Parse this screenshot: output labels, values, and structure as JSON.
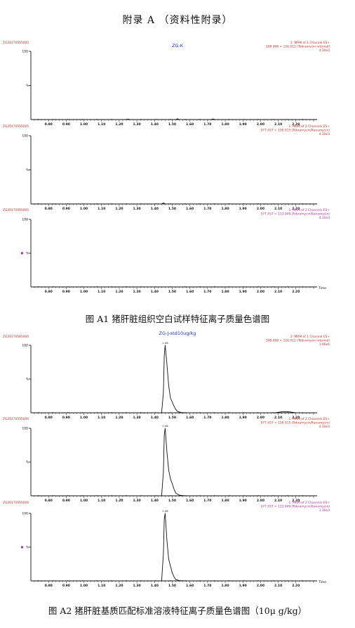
{
  "page": {
    "title": "附录 A （资料性附录）",
    "figure1_caption": "图 A1   猪肝脏组织空白试样特征离子质量色谱图",
    "figure2_caption": "图 A2   猪肝脏基质匹配标准溶液特征离子质量色谱图（10μ g/kg）"
  },
  "colors": {
    "red": "#c0302a",
    "blue": "#1c2fd6",
    "magenta": "#b0309e",
    "trace": "#111111"
  },
  "chart_data": [
    {
      "type": "line",
      "sample_title": "ZG-K",
      "x_axis_label": "Time",
      "x_ticks": [
        "0.80",
        "0.90",
        "1.00",
        "1.10",
        "1.20",
        "1.30",
        "1.40",
        "1.50",
        "1.60",
        "1.70",
        "1.80",
        "1.90",
        "2.00",
        "2.10",
        "2.20"
      ],
      "xlim": [
        0.7,
        2.32
      ],
      "panels": [
        {
          "file_id": "ZG20170505005",
          "y_top": "100",
          "y_mid": "%",
          "color": "#c0302a",
          "scan_line": "2: MRM of 1 Channel ES+",
          "transition": "598.496 > 116.012 (Tobramycin internal)",
          "intensity": "4.30e3",
          "x": [
            0.7,
            1.2,
            1.24,
            1.25,
            1.26,
            1.3,
            1.5,
            1.52,
            1.53,
            1.54,
            1.57,
            1.7,
            1.72,
            1.73,
            1.74,
            1.77,
            2.32
          ],
          "y": [
            0,
            0,
            0,
            0.8,
            0,
            0,
            0,
            0,
            1.2,
            0,
            0,
            0,
            0,
            1.0,
            0,
            0,
            0
          ]
        },
        {
          "file_id": "ZG20170505005",
          "y_top": "100",
          "y_mid": "%",
          "color": "#c0302a",
          "scan_line": "1: MRM of 2 Channels ES+",
          "transition": "577.437 > 156.015 (Tobramycin/Kanamycin)",
          "intensity": "4.30e3",
          "x": [
            0.7,
            1.42,
            1.44,
            1.45,
            1.46,
            1.48,
            2.32
          ],
          "y": [
            0,
            0,
            0,
            1.5,
            0,
            0,
            0
          ]
        },
        {
          "file_id": "ZG20170505005",
          "y_top": "100",
          "y_mid": "%",
          "color": "#b0309e",
          "scan_line": "1: MRM of 2 Channels ES+",
          "transition": "577.437 > 113.949 (Tobramycin/Kanamycin)",
          "intensity": "4.30e3",
          "x": [
            0.7,
            2.32
          ],
          "y": [
            0,
            0
          ]
        }
      ]
    },
    {
      "type": "line",
      "sample_title": "ZG-J-std10ug/kg",
      "x_axis_label": "Time",
      "x_ticks": [
        "0.80",
        "0.90",
        "1.00",
        "1.10",
        "1.20",
        "1.30",
        "1.40",
        "1.50",
        "1.60",
        "1.70",
        "1.80",
        "1.90",
        "2.00",
        "2.10",
        "2.20"
      ],
      "xlim": [
        0.7,
        2.32
      ],
      "panels": [
        {
          "file_id": "ZG20170505006",
          "y_top": "100",
          "y_mid": "%",
          "color": "#c0302a",
          "scan_line": "2: MRM of 1 Channel ES+",
          "transition": "598.496 > 116.012 (Tobramycin internal)",
          "intensity": "1.96e6",
          "peak_label": "1.46",
          "x": [
            0.7,
            1.42,
            1.44,
            1.45,
            1.455,
            1.46,
            1.47,
            1.48,
            1.49,
            1.5,
            1.51,
            1.52,
            1.53,
            1.55,
            1.58,
            2.08,
            2.12,
            2.16,
            2.2,
            2.32
          ],
          "y": [
            0,
            0,
            0,
            30,
            85,
            100,
            72,
            40,
            22,
            16,
            10,
            5,
            2,
            0.5,
            0,
            0,
            1.5,
            1.5,
            0,
            0
          ]
        },
        {
          "file_id": "ZG20170505006",
          "y_top": "100",
          "y_mid": "%",
          "color": "#c0302a",
          "scan_line": "1: MRM of 2 Channels ES+",
          "transition": "577.437 > 156.015 (Tobramycin/Kanamycin)",
          "intensity": "4.30e3",
          "peak_label": "1.46",
          "x": [
            0.7,
            1.42,
            1.44,
            1.45,
            1.455,
            1.46,
            1.47,
            1.48,
            1.49,
            1.5,
            1.51,
            1.52,
            1.54,
            1.57,
            2.32
          ],
          "y": [
            0,
            0,
            0,
            35,
            90,
            100,
            65,
            38,
            25,
            18,
            10,
            4,
            1,
            0,
            0
          ]
        },
        {
          "file_id": "ZG20170505006",
          "y_top": "100",
          "y_mid": "%",
          "color": "#b0309e",
          "scan_line": "1: MRM of 2 Channels ES+",
          "transition": "577.437 > 113.949 (Tobramycin/Kanamycin)",
          "intensity": "1.36e3",
          "peak_label": "1.46",
          "x": [
            0.7,
            1.42,
            1.44,
            1.45,
            1.455,
            1.46,
            1.47,
            1.48,
            1.49,
            1.5,
            1.51,
            1.52,
            1.54,
            1.57,
            2.32
          ],
          "y": [
            0,
            0,
            0,
            40,
            92,
            100,
            60,
            32,
            22,
            12,
            6,
            2,
            0.5,
            0,
            0
          ]
        }
      ]
    }
  ]
}
